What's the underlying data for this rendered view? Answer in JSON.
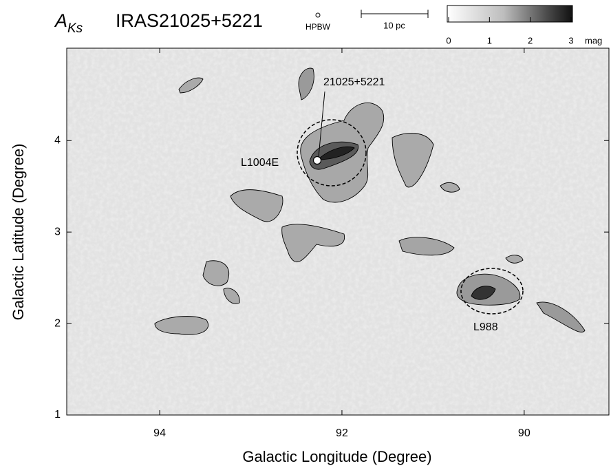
{
  "chart_data": {
    "type": "image",
    "title_symbol": "A",
    "title_subscript": "Ks",
    "title": "IRAS21025+5221",
    "beam_label": "HPBW",
    "scale_label": "10 pc",
    "xlabel": "Galactic Longitude (Degree)",
    "ylabel": "Galactic Latitude (Degree)",
    "xlim": [
      95.02,
      89.07
    ],
    "ylim": [
      1,
      5.01
    ],
    "xticks": [
      94,
      92,
      90
    ],
    "yticks": [
      1,
      2,
      3,
      4
    ],
    "colorbar": {
      "lim": [
        0,
        3
      ],
      "ticks": [
        0,
        1,
        2,
        3
      ],
      "label": "mag"
    },
    "annotations": [
      "21025+5221",
      "L1004E",
      "L988"
    ]
  }
}
